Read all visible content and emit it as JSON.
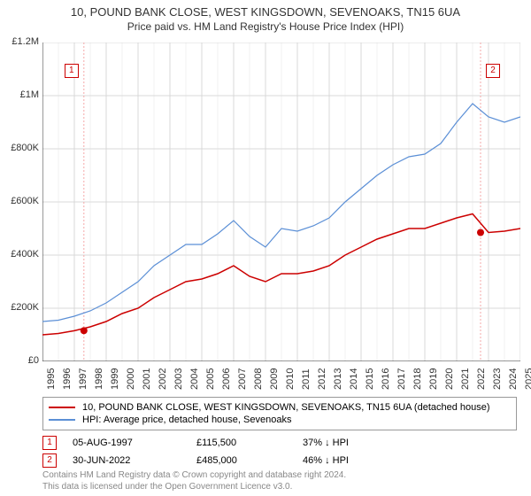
{
  "title": {
    "line1": "10, POUND BANK CLOSE, WEST KINGSDOWN, SEVENOAKS, TN15 6UA",
    "line2": "Price paid vs. HM Land Registry's House Price Index (HPI)"
  },
  "chart": {
    "type": "line",
    "background_color": "#ffffff",
    "plot_background_color": "#ffffff",
    "grid_color": "#d9d9d9",
    "grid_color_alt": "#f2f2f2",
    "axis_color": "#333333",
    "ylim": [
      0,
      1200000
    ],
    "ytick_step": 200000,
    "yticks": [
      "£0",
      "£200K",
      "£400K",
      "£600K",
      "£800K",
      "£1M",
      "£1.2M"
    ],
    "xlim": [
      1995,
      2025
    ],
    "xticks": [
      "1995",
      "1996",
      "1997",
      "1998",
      "1999",
      "2000",
      "2001",
      "2002",
      "2003",
      "2004",
      "2005",
      "2006",
      "2007",
      "2008",
      "2009",
      "2010",
      "2011",
      "2012",
      "2013",
      "2014",
      "2015",
      "2016",
      "2017",
      "2018",
      "2019",
      "2020",
      "2021",
      "2022",
      "2023",
      "2024",
      "2025"
    ],
    "label_fontsize": 11,
    "label_color": "#333333",
    "series": [
      {
        "name": "price_paid",
        "color": "#cc0000",
        "line_width": 1.5,
        "x": [
          1995,
          1996,
          1997,
          1998,
          1999,
          2000,
          2001,
          2002,
          2003,
          2004,
          2005,
          2006,
          2007,
          2008,
          2009,
          2010,
          2011,
          2012,
          2013,
          2014,
          2015,
          2016,
          2017,
          2018,
          2019,
          2020,
          2021,
          2022,
          2023,
          2024,
          2025
        ],
        "y": [
          100000,
          105000,
          115500,
          130000,
          150000,
          180000,
          200000,
          240000,
          270000,
          300000,
          310000,
          330000,
          360000,
          320000,
          300000,
          330000,
          330000,
          340000,
          360000,
          400000,
          430000,
          460000,
          480000,
          500000,
          500000,
          520000,
          540000,
          555000,
          485000,
          490000,
          500000
        ]
      },
      {
        "name": "hpi",
        "color": "#5b8fd6",
        "line_width": 1.2,
        "x": [
          1995,
          1996,
          1997,
          1998,
          1999,
          2000,
          2001,
          2002,
          2003,
          2004,
          2005,
          2006,
          2007,
          2008,
          2009,
          2010,
          2011,
          2012,
          2013,
          2014,
          2015,
          2016,
          2017,
          2018,
          2019,
          2020,
          2021,
          2022,
          2023,
          2024,
          2025
        ],
        "y": [
          150000,
          155000,
          170000,
          190000,
          220000,
          260000,
          300000,
          360000,
          400000,
          440000,
          440000,
          480000,
          530000,
          470000,
          430000,
          500000,
          490000,
          510000,
          540000,
          600000,
          650000,
          700000,
          740000,
          770000,
          780000,
          820000,
          900000,
          970000,
          920000,
          900000,
          920000
        ]
      }
    ],
    "markers": [
      {
        "label": "1",
        "x": 1997.6,
        "y": 115500,
        "vline": true,
        "vline_color": "#f4a8a8"
      },
      {
        "label": "2",
        "x": 2022.5,
        "y": 485000,
        "vline": true,
        "vline_color": "#f4a8a8"
      }
    ],
    "point_style": {
      "fill": "#cc0000",
      "radius": 4
    }
  },
  "legend": {
    "border_color": "#999999",
    "fontsize": 11,
    "items": [
      {
        "color": "#cc0000",
        "label": "10, POUND BANK CLOSE, WEST KINGSDOWN, SEVENOAKS, TN15 6UA (detached house)"
      },
      {
        "color": "#5b8fd6",
        "label": "HPI: Average price, detached house, Sevenoaks"
      }
    ]
  },
  "transactions": [
    {
      "marker": "1",
      "date": "05-AUG-1997",
      "price": "£115,500",
      "pct": "37% ↓ HPI"
    },
    {
      "marker": "2",
      "date": "30-JUN-2022",
      "price": "£485,000",
      "pct": "46% ↓ HPI"
    }
  ],
  "footer": {
    "line1": "Contains HM Land Registry data © Crown copyright and database right 2024.",
    "line2": "This data is licensed under the Open Government Licence v3.0."
  }
}
